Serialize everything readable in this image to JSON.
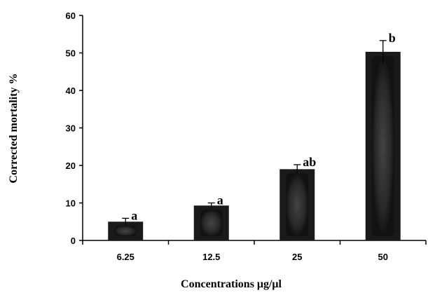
{
  "chart_data": {
    "type": "bar",
    "categories": [
      "6.25",
      "12.5",
      "25",
      "50"
    ],
    "values": [
      5.0,
      9.3,
      19.0,
      50.3
    ],
    "errors": [
      0.9,
      0.7,
      1.2,
      3.0
    ],
    "significance": [
      "a",
      "a",
      "ab",
      "b"
    ],
    "xlabel": "Concentrations μg/μl",
    "ylabel": "Corrected mortality %",
    "ylim": [
      0,
      60
    ],
    "yticks": [
      0,
      10,
      20,
      30,
      40,
      50,
      60
    ],
    "grid": false,
    "bar_color": "#1a1a1a",
    "bar_highlight": "#3a3a3a"
  }
}
